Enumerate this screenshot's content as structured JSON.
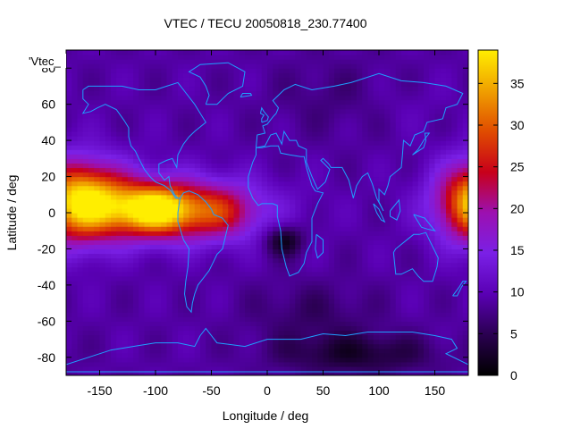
{
  "chart_data": {
    "type": "heatmap",
    "title": "VTEC / TECU 20050818_230.77400",
    "xlabel": "Longitude / deg",
    "ylabel": "Latitude / deg",
    "key_label": "'Vtec_",
    "xlim": [
      -180,
      180
    ],
    "ylim": [
      -90,
      90
    ],
    "x_ticks": [
      -150,
      -100,
      -50,
      0,
      50,
      100,
      150
    ],
    "y_ticks": [
      -80,
      -60,
      -40,
      -20,
      0,
      20,
      40,
      60,
      80
    ],
    "colorbar": {
      "range": [
        0,
        39
      ],
      "ticks": [
        0,
        5,
        10,
        15,
        20,
        25,
        30,
        35
      ],
      "palette": [
        "#000000",
        "#2a0050",
        "#5a00b4",
        "#7a20e6",
        "#9c10b0",
        "#c8001a",
        "#e04c00",
        "#f0a000",
        "#ffee00"
      ]
    },
    "value_field": {
      "background": 9,
      "features": [
        {
          "lon": -90,
          "lat": 2,
          "sigma_lon": 55,
          "sigma_lat": 12,
          "peak": 19
        },
        {
          "lon": -100,
          "lat": 2,
          "sigma_lon": 22,
          "sigma_lat": 9,
          "peak": 16
        },
        {
          "lon": -160,
          "lat": 10,
          "sigma_lon": 30,
          "sigma_lat": 14,
          "peak": 10
        },
        {
          "lon": 190,
          "lat": 5,
          "sigma_lon": 25,
          "sigma_lat": 16,
          "peak": 17
        },
        {
          "lon": -40,
          "lat": 0,
          "sigma_lon": 20,
          "sigma_lat": 10,
          "peak": 6
        },
        {
          "lon": 15,
          "lat": -15,
          "sigma_lon": 12,
          "sigma_lat": 6,
          "peak": -8
        },
        {
          "lon": 80,
          "lat": -78,
          "sigma_lon": 50,
          "sigma_lat": 8,
          "peak": -6
        },
        {
          "lon": 40,
          "lat": -55,
          "sigma_lon": 40,
          "sigma_lat": 12,
          "peak": -3
        },
        {
          "lon": 60,
          "lat": 65,
          "sigma_lon": 40,
          "sigma_lat": 15,
          "peak": -2
        },
        {
          "lon": 120,
          "lat": 60,
          "sigma_lon": 30,
          "sigma_lat": 10,
          "peak": 1
        }
      ]
    },
    "coastlines": [
      [
        [
          -165,
          68
        ],
        [
          -160,
          70
        ],
        [
          -145,
          70
        ],
        [
          -130,
          70
        ],
        [
          -115,
          68
        ],
        [
          -100,
          68
        ],
        [
          -90,
          70
        ],
        [
          -80,
          72
        ],
        [
          -75,
          68
        ],
        [
          -65,
          60
        ],
        [
          -60,
          55
        ],
        [
          -55,
          50
        ],
        [
          -65,
          45
        ],
        [
          -70,
          42
        ],
        [
          -75,
          38
        ],
        [
          -80,
          32
        ],
        [
          -81,
          25
        ],
        [
          -85,
          30
        ],
        [
          -90,
          29
        ],
        [
          -97,
          27
        ],
        [
          -97,
          22
        ],
        [
          -92,
          18
        ],
        [
          -88,
          20
        ],
        [
          -87,
          15
        ],
        [
          -83,
          10
        ],
        [
          -80,
          8
        ],
        [
          -78,
          8
        ],
        [
          -82,
          8
        ],
        [
          -86,
          12
        ],
        [
          -92,
          15
        ],
        [
          -100,
          17
        ],
        [
          -105,
          20
        ],
        [
          -110,
          24
        ],
        [
          -115,
          30
        ],
        [
          -118,
          34
        ],
        [
          -122,
          37
        ],
        [
          -124,
          42
        ],
        [
          -124,
          47
        ],
        [
          -128,
          51
        ],
        [
          -135,
          57
        ],
        [
          -145,
          60
        ],
        [
          -152,
          58
        ],
        [
          -158,
          56
        ],
        [
          -165,
          55
        ],
        [
          -160,
          60
        ],
        [
          -165,
          63
        ],
        [
          -165,
          68
        ]
      ],
      [
        [
          -78,
          8
        ],
        [
          -75,
          11
        ],
        [
          -70,
          12
        ],
        [
          -62,
          10
        ],
        [
          -55,
          6
        ],
        [
          -50,
          2
        ],
        [
          -48,
          -1
        ],
        [
          -40,
          -3
        ],
        [
          -35,
          -7
        ],
        [
          -37,
          -12
        ],
        [
          -40,
          -20
        ],
        [
          -45,
          -23
        ],
        [
          -48,
          -27
        ],
        [
          -52,
          -32
        ],
        [
          -57,
          -36
        ],
        [
          -62,
          -40
        ],
        [
          -65,
          -45
        ],
        [
          -67,
          -50
        ],
        [
          -68,
          -55
        ],
        [
          -72,
          -52
        ],
        [
          -74,
          -45
        ],
        [
          -73,
          -38
        ],
        [
          -71,
          -30
        ],
        [
          -70,
          -20
        ],
        [
          -75,
          -15
        ],
        [
          -80,
          -5
        ],
        [
          -80,
          0
        ],
        [
          -78,
          8
        ]
      ],
      [
        [
          -10,
          36
        ],
        [
          -5,
          36
        ],
        [
          3,
          37
        ],
        [
          10,
          37
        ],
        [
          12,
          33
        ],
        [
          20,
          32
        ],
        [
          30,
          31
        ],
        [
          33,
          31
        ],
        [
          35,
          25
        ],
        [
          40,
          15
        ],
        [
          43,
          12
        ],
        [
          50,
          11
        ],
        [
          45,
          5
        ],
        [
          40,
          -3
        ],
        [
          40,
          -10
        ],
        [
          40,
          -16
        ],
        [
          35,
          -22
        ],
        [
          33,
          -28
        ],
        [
          28,
          -33
        ],
        [
          20,
          -35
        ],
        [
          17,
          -30
        ],
        [
          13,
          -20
        ],
        [
          12,
          -10
        ],
        [
          9,
          -2
        ],
        [
          9,
          4
        ],
        [
          5,
          5
        ],
        [
          -5,
          5
        ],
        [
          -8,
          4
        ],
        [
          -13,
          8
        ],
        [
          -17,
          14
        ],
        [
          -17,
          20
        ],
        [
          -13,
          28
        ],
        [
          -10,
          32
        ],
        [
          -10,
          36
        ]
      ],
      [
        [
          -10,
          36
        ],
        [
          -9,
          43
        ],
        [
          -2,
          44
        ],
        [
          -4,
          48
        ],
        [
          0,
          49
        ],
        [
          5,
          53
        ],
        [
          8,
          55
        ],
        [
          10,
          58
        ],
        [
          5,
          62
        ],
        [
          15,
          68
        ],
        [
          25,
          71
        ],
        [
          40,
          68
        ],
        [
          60,
          70
        ],
        [
          75,
          72
        ],
        [
          100,
          77
        ],
        [
          120,
          73
        ],
        [
          140,
          72
        ],
        [
          160,
          70
        ],
        [
          175,
          66
        ],
        [
          170,
          60
        ],
        [
          160,
          58
        ],
        [
          157,
          52
        ],
        [
          143,
          50
        ],
        [
          140,
          45
        ],
        [
          132,
          43
        ],
        [
          128,
          37
        ],
        [
          122,
          40
        ],
        [
          121,
          32
        ],
        [
          120,
          25
        ],
        [
          110,
          20
        ],
        [
          108,
          15
        ],
        [
          105,
          10
        ],
        [
          100,
          13
        ],
        [
          100,
          6
        ],
        [
          104,
          1
        ],
        [
          98,
          8
        ],
        [
          94,
          16
        ],
        [
          90,
          22
        ],
        [
          85,
          20
        ],
        [
          80,
          15
        ],
        [
          77,
          8
        ],
        [
          73,
          18
        ],
        [
          67,
          25
        ],
        [
          57,
          25
        ],
        [
          55,
          27
        ],
        [
          50,
          30
        ],
        [
          48,
          29
        ],
        [
          56,
          24
        ],
        [
          52,
          17
        ],
        [
          45,
          13
        ],
        [
          40,
          20
        ],
        [
          35,
          28
        ],
        [
          35,
          35
        ],
        [
          28,
          37
        ],
        [
          26,
          40
        ],
        [
          20,
          40
        ],
        [
          15,
          45
        ],
        [
          13,
          38
        ],
        [
          8,
          44
        ],
        [
          3,
          43
        ],
        [
          -2,
          37
        ],
        [
          -10,
          36
        ]
      ],
      [
        [
          113,
          -22
        ],
        [
          115,
          -34
        ],
        [
          120,
          -34
        ],
        [
          130,
          -31
        ],
        [
          135,
          -35
        ],
        [
          140,
          -38
        ],
        [
          148,
          -38
        ],
        [
          152,
          -30
        ],
        [
          153,
          -25
        ],
        [
          145,
          -15
        ],
        [
          142,
          -11
        ],
        [
          136,
          -12
        ],
        [
          131,
          -12
        ],
        [
          125,
          -15
        ],
        [
          115,
          -20
        ],
        [
          113,
          -22
        ]
      ],
      [
        [
          -55,
          60
        ],
        [
          -45,
          60
        ],
        [
          -35,
          66
        ],
        [
          -22,
          70
        ],
        [
          -20,
          78
        ],
        [
          -35,
          83
        ],
        [
          -60,
          82
        ],
        [
          -70,
          78
        ],
        [
          -60,
          75
        ],
        [
          -55,
          70
        ],
        [
          -52,
          65
        ],
        [
          -55,
          60
        ]
      ],
      [
        [
          -60,
          -68
        ],
        [
          -55,
          -64
        ],
        [
          -45,
          -72
        ],
        [
          -20,
          -74
        ],
        [
          0,
          -70
        ],
        [
          30,
          -70
        ],
        [
          50,
          -67
        ],
        [
          70,
          -68
        ],
        [
          90,
          -66
        ],
        [
          110,
          -66
        ],
        [
          130,
          -66
        ],
        [
          150,
          -68
        ],
        [
          165,
          -70
        ],
        [
          170,
          -75
        ],
        [
          160,
          -78
        ],
        [
          180,
          -84
        ],
        [
          180,
          -88
        ],
        [
          -180,
          -88
        ],
        [
          -180,
          -84
        ],
        [
          -160,
          -80
        ],
        [
          -140,
          -76
        ],
        [
          -120,
          -74
        ],
        [
          -100,
          -72
        ],
        [
          -80,
          -72
        ],
        [
          -65,
          -74
        ],
        [
          -60,
          -68
        ]
      ],
      [
        [
          44,
          -12
        ],
        [
          50,
          -15
        ],
        [
          50,
          -22
        ],
        [
          45,
          -25
        ],
        [
          43,
          -20
        ],
        [
          44,
          -12
        ]
      ],
      [
        [
          130,
          32
        ],
        [
          135,
          34
        ],
        [
          140,
          36
        ],
        [
          142,
          40
        ],
        [
          141,
          44
        ],
        [
          145,
          44
        ],
        [
          140,
          40
        ],
        [
          135,
          35
        ],
        [
          130,
          32
        ]
      ],
      [
        [
          -5,
          50
        ],
        [
          0,
          51
        ],
        [
          1,
          53
        ],
        [
          -3,
          56
        ],
        [
          -5,
          58
        ],
        [
          -6,
          55
        ],
        [
          -3,
          54
        ],
        [
          -5,
          52
        ],
        [
          -5,
          50
        ]
      ],
      [
        [
          -24,
          64
        ],
        [
          -14,
          65
        ],
        [
          -15,
          66
        ],
        [
          -22,
          66
        ],
        [
          -24,
          64
        ]
      ],
      [
        [
          95,
          5
        ],
        [
          100,
          2
        ],
        [
          105,
          -5
        ],
        [
          102,
          -4
        ],
        [
          98,
          0
        ],
        [
          95,
          5
        ]
      ],
      [
        [
          110,
          1
        ],
        [
          118,
          7
        ],
        [
          119,
          1
        ],
        [
          116,
          -4
        ],
        [
          110,
          -2
        ],
        [
          110,
          1
        ]
      ],
      [
        [
          131,
          -1
        ],
        [
          141,
          -3
        ],
        [
          150,
          -10
        ],
        [
          143,
          -9
        ],
        [
          138,
          -8
        ],
        [
          131,
          -1
        ]
      ],
      [
        [
          166,
          -46
        ],
        [
          172,
          -41
        ],
        [
          175,
          -38
        ],
        [
          178,
          -38
        ],
        [
          174,
          -41
        ],
        [
          170,
          -46
        ],
        [
          166,
          -46
        ]
      ]
    ]
  }
}
